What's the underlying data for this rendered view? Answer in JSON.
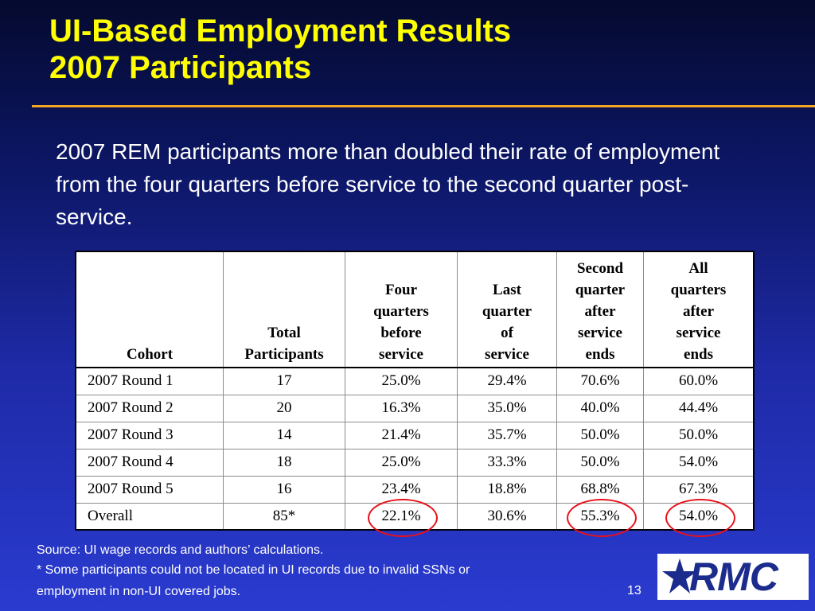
{
  "slide": {
    "title_line1": "UI-Based Employment Results",
    "title_line2": "2007 Participants",
    "intro": "2007 REM participants more than doubled their rate of employment from the four quarters before service to the second quarter post-service.",
    "page_number": "13"
  },
  "table": {
    "headers": {
      "cohort": "Cohort",
      "total_1": "Total",
      "total_2": "Participants",
      "four_1": "Four",
      "four_2": "quarters",
      "four_3": "before",
      "four_4": "service",
      "last_1": "Last",
      "last_2": "quarter",
      "last_3": "of",
      "last_4": "service",
      "second_1": "Second",
      "second_2": "quarter",
      "second_3": "after",
      "second_4": "service",
      "second_5": "ends",
      "all_1": "All",
      "all_2": "quarters",
      "all_3": "after",
      "all_4": "service",
      "all_5": "ends"
    },
    "rows": [
      [
        "2007 Round 1",
        "17",
        "25.0%",
        "29.4%",
        "70.6%",
        "60.0%"
      ],
      [
        "2007 Round 2",
        "20",
        "16.3%",
        "35.0%",
        "40.0%",
        "44.4%"
      ],
      [
        "2007 Round 3",
        "14",
        "21.4%",
        "35.7%",
        "50.0%",
        "50.0%"
      ],
      [
        "2007 Round 4",
        "18",
        "25.0%",
        "33.3%",
        "50.0%",
        "54.0%"
      ],
      [
        "2007 Round 5",
        "16",
        "23.4%",
        "18.8%",
        "68.8%",
        "67.3%"
      ],
      [
        "Overall",
        "85*",
        "22.1%",
        "30.6%",
        "55.3%",
        "54.0%"
      ]
    ],
    "highlight_color": "#e8101a"
  },
  "footnotes": {
    "source": "Source: UI wage records and authors’ calculations.",
    "note_line1": "* Some participants could not be located in UI records due to invalid SSNs or",
    "note_line2": "employment in non-UI covered jobs."
  },
  "logo": {
    "text": "RMC",
    "icon": "star-icon"
  },
  "colors": {
    "title": "#ffff00",
    "rule": "#f5a623",
    "logo": "#1c2c8c"
  }
}
